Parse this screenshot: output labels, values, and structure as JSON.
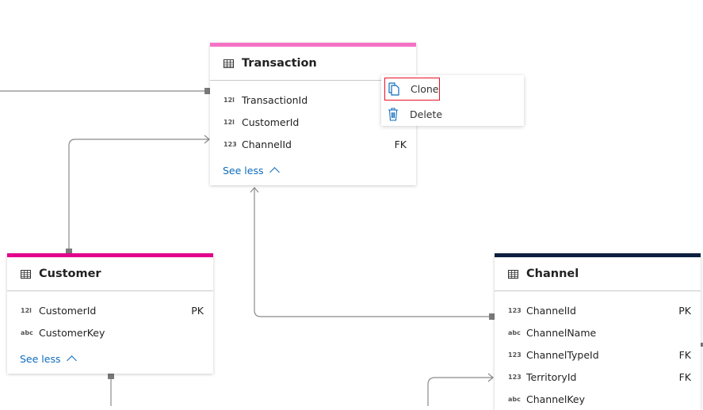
{
  "tables": [
    {
      "title": "Transaction",
      "accent": "#f472c4",
      "columns": [
        {
          "type": "12l",
          "name": "TransactionId",
          "key": ""
        },
        {
          "type": "12l",
          "name": "CustomerId",
          "key": ""
        },
        {
          "type": "123",
          "name": "ChannelId",
          "key": "FK"
        }
      ],
      "see_less": "See less"
    },
    {
      "title": "Customer",
      "accent": "#e3008c",
      "columns": [
        {
          "type": "12l",
          "name": "CustomerId",
          "key": "PK"
        },
        {
          "type": "abc",
          "name": "CustomerKey",
          "key": ""
        }
      ],
      "see_less": "See less"
    },
    {
      "title": "Channel",
      "accent": "#0c1f3f",
      "columns": [
        {
          "type": "123",
          "name": "ChannelId",
          "key": "PK"
        },
        {
          "type": "abc",
          "name": "ChannelName",
          "key": ""
        },
        {
          "type": "123",
          "name": "ChannelTypeId",
          "key": "FK"
        },
        {
          "type": "123",
          "name": "TerritoryId",
          "key": "FK"
        },
        {
          "type": "abc",
          "name": "ChannelKey",
          "key": ""
        }
      ]
    }
  ],
  "context_menu": {
    "clone": "Clone",
    "delete": "Delete"
  }
}
